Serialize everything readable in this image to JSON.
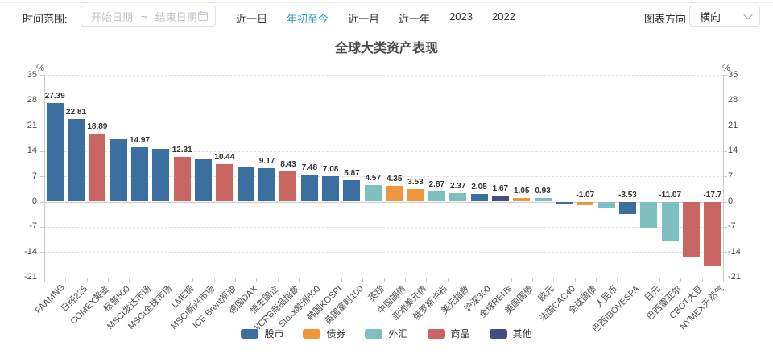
{
  "toolbar": {
    "time_range_label": "时间范围:",
    "date_picker": {
      "start_placeholder": "开始日期",
      "separator": "~",
      "end_placeholder": "结束日期"
    },
    "quick_ranges": [
      {
        "label": "近一日",
        "active": false
      },
      {
        "label": "年初至今",
        "active": true
      },
      {
        "label": "近一月",
        "active": false
      },
      {
        "label": "近一年",
        "active": false
      },
      {
        "label": "2023",
        "active": false
      },
      {
        "label": "2022",
        "active": false
      }
    ],
    "chart_direction_label": "图表方向",
    "chart_direction_value": "横向"
  },
  "colors": {
    "active_link": "#3aa0c4",
    "axis_line": "#cccccc",
    "grid_line": "#e3e3e3",
    "text": "#333333"
  },
  "chart_data": {
    "type": "bar",
    "title": "全球大类资产表现",
    "unit": "%",
    "ylim": [
      -21,
      35
    ],
    "yticks": [
      35,
      28,
      21,
      14,
      7,
      0,
      -7,
      -14,
      -21
    ],
    "grid": "horizontal-dashed",
    "legend_position": "bottom",
    "legend": [
      {
        "label": "股市",
        "color": "#3a6fa0"
      },
      {
        "label": "债券",
        "color": "#ee973f"
      },
      {
        "label": "外汇",
        "color": "#7ec0c1"
      },
      {
        "label": "商品",
        "color": "#ca6662"
      },
      {
        "label": "其他",
        "color": "#424d84"
      }
    ],
    "bars": [
      {
        "name": "FAAMNG",
        "value": 27.39,
        "label": "27.39",
        "group": "股市"
      },
      {
        "name": "日经225",
        "value": 22.81,
        "label": "22.81",
        "group": "股市"
      },
      {
        "name": "COMEX黄金",
        "value": 18.89,
        "label": "18.89",
        "group": "商品"
      },
      {
        "name": "标普500",
        "value": 17.3,
        "label": "",
        "group": "股市"
      },
      {
        "name": "MSCI发达市场",
        "value": 14.97,
        "label": "14.97",
        "group": "股市"
      },
      {
        "name": "MSCI全球市场",
        "value": 14.5,
        "label": "",
        "group": "股市"
      },
      {
        "name": "LME铜",
        "value": 12.31,
        "label": "12.31",
        "group": "商品"
      },
      {
        "name": "MSCI新兴市场",
        "value": 11.8,
        "label": "",
        "group": "股市"
      },
      {
        "name": "ICE Brent原油",
        "value": 10.44,
        "label": "10.44",
        "group": "商品"
      },
      {
        "name": "德国DAX",
        "value": 9.8,
        "label": "",
        "group": "股市"
      },
      {
        "name": "恒生国企",
        "value": 9.17,
        "label": "9.17",
        "group": "股市"
      },
      {
        "name": "RJ/CRB商品指数",
        "value": 8.43,
        "label": "8.43",
        "group": "商品"
      },
      {
        "name": "Stoxx欧洲600",
        "value": 7.48,
        "label": "7.48",
        "group": "股市"
      },
      {
        "name": "韩国KOSPI",
        "value": 7.08,
        "label": "7.08",
        "group": "股市"
      },
      {
        "name": "英国富时100",
        "value": 5.87,
        "label": "5.87",
        "group": "股市"
      },
      {
        "name": "英镑",
        "value": 4.57,
        "label": "4.57",
        "group": "外汇"
      },
      {
        "name": "中国国债",
        "value": 4.35,
        "label": "4.35",
        "group": "债券"
      },
      {
        "name": "亚洲美元债",
        "value": 3.53,
        "label": "3.53",
        "group": "债券"
      },
      {
        "name": "俄罗斯卢布",
        "value": 2.87,
        "label": "2.87",
        "group": "外汇"
      },
      {
        "name": "美元指数",
        "value": 2.37,
        "label": "2.37",
        "group": "外汇"
      },
      {
        "name": "沪深300",
        "value": 2.05,
        "label": "2.05",
        "group": "股市"
      },
      {
        "name": "全球REITs",
        "value": 1.67,
        "label": "1.67",
        "group": "其他"
      },
      {
        "name": "美国国债",
        "value": 1.05,
        "label": "1.05",
        "group": "债券"
      },
      {
        "name": "欧元",
        "value": 0.93,
        "label": "0.93",
        "group": "外汇"
      },
      {
        "name": "法国CAC40",
        "value": -0.15,
        "label": "",
        "group": "股市"
      },
      {
        "name": "全球国债",
        "value": -1.07,
        "label": "-1.07",
        "group": "债券"
      },
      {
        "name": "人民币",
        "value": -1.9,
        "label": "",
        "group": "外汇"
      },
      {
        "name": "巴西IBOVESPA",
        "value": -3.53,
        "label": "-3.53",
        "group": "股市"
      },
      {
        "name": "日元",
        "value": -7.3,
        "label": "",
        "group": "外汇"
      },
      {
        "name": "巴西雷亚尔",
        "value": -11.07,
        "label": "-11.07",
        "group": "外汇"
      },
      {
        "name": "CBOT大豆",
        "value": -15.5,
        "label": "",
        "group": "商品"
      },
      {
        "name": "NYMEX天然气",
        "value": -17.7,
        "label": "-17.7",
        "group": "商品"
      }
    ]
  }
}
